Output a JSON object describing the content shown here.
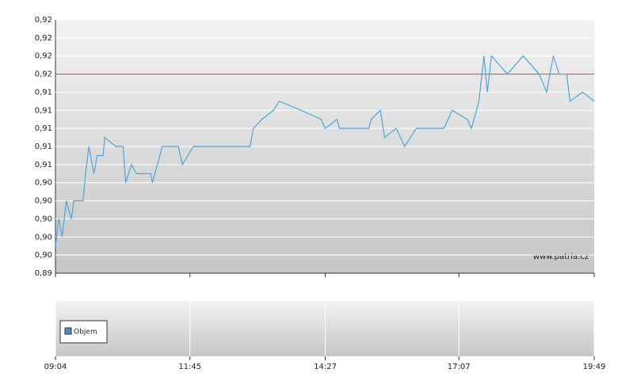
{
  "chart_data": {
    "type": "line",
    "x": [
      "09:04",
      "09:08",
      "09:12",
      "09:17",
      "09:23",
      "09:26",
      "09:37",
      "09:40",
      "09:44",
      "09:50",
      "09:54",
      "10:01",
      "10:03",
      "10:16",
      "10:25",
      "10:28",
      "10:35",
      "10:41",
      "10:58",
      "11:00",
      "11:12",
      "11:31",
      "11:36",
      "11:49",
      "12:57",
      "13:01",
      "13:11",
      "13:25",
      "13:32",
      "13:58",
      "14:22",
      "14:27",
      "14:41",
      "14:44",
      "15:19",
      "15:22",
      "15:33",
      "15:38",
      "15:52",
      "16:02",
      "16:16",
      "16:49",
      "16:59",
      "17:17",
      "17:22",
      "17:31",
      "17:37",
      "17:41",
      "17:46",
      "18:05",
      "18:24",
      "18:43",
      "18:52",
      "19:00",
      "19:07",
      "19:16",
      "19:20",
      "19:35",
      "19:49"
    ],
    "series": [
      {
        "color": "#4aa8d8",
        "values": [
          0.897,
          0.9,
          0.898,
          0.902,
          0.9,
          0.902,
          0.902,
          0.905,
          0.908,
          0.905,
          0.907,
          0.907,
          0.909,
          0.908,
          0.908,
          0.904,
          0.906,
          0.905,
          0.905,
          0.904,
          0.908,
          0.908,
          0.906,
          0.908,
          0.908,
          0.91,
          0.911,
          0.912,
          0.913,
          0.912,
          0.911,
          0.91,
          0.911,
          0.91,
          0.91,
          0.911,
          0.912,
          0.909,
          0.91,
          0.908,
          0.91,
          0.91,
          0.912,
          0.911,
          0.91,
          0.913,
          0.918,
          0.914,
          0.918,
          0.916,
          0.918,
          0.916,
          0.914,
          0.918,
          0.916,
          0.916,
          0.913,
          0.914,
          0.913
        ]
      }
    ],
    "reference_line": {
      "value": 0.916,
      "color": "#e0402e"
    },
    "xlim": [
      "09:04",
      "19:49"
    ],
    "xticks": [
      "09:04",
      "11:45",
      "14:27",
      "17:07",
      "19:49"
    ],
    "ylim": [
      0.894,
      0.922
    ],
    "yticks": [
      {
        "value": 0.894,
        "label": "0,89"
      },
      {
        "value": 0.896,
        "label": "0,90"
      },
      {
        "value": 0.898,
        "label": "0,90"
      },
      {
        "value": 0.9,
        "label": "0,90"
      },
      {
        "value": 0.902,
        "label": "0,90"
      },
      {
        "value": 0.904,
        "label": "0,90"
      },
      {
        "value": 0.906,
        "label": "0,91"
      },
      {
        "value": 0.908,
        "label": "0,91"
      },
      {
        "value": 0.91,
        "label": "0,91"
      },
      {
        "value": 0.912,
        "label": "0,91"
      },
      {
        "value": 0.914,
        "label": "0,91"
      },
      {
        "value": 0.916,
        "label": "0,92"
      },
      {
        "value": 0.918,
        "label": "0,92"
      },
      {
        "value": 0.92,
        "label": "0,92"
      },
      {
        "value": 0.922,
        "label": "0,92"
      }
    ],
    "grid": true,
    "watermark": "www.patria.cz",
    "volume_panel": {
      "legend": "Objem",
      "color": "#4a90c8"
    }
  }
}
